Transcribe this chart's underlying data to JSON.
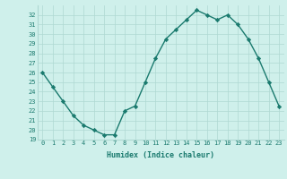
{
  "x": [
    0,
    1,
    2,
    3,
    4,
    5,
    6,
    7,
    8,
    9,
    10,
    11,
    12,
    13,
    14,
    15,
    16,
    17,
    18,
    19,
    20,
    21,
    22,
    23
  ],
  "y": [
    26,
    24.5,
    23,
    21.5,
    20.5,
    20,
    19.5,
    19.5,
    22,
    22.5,
    25,
    27.5,
    29.5,
    30.5,
    31.5,
    32.5,
    32,
    31.5,
    32,
    31,
    29.5,
    27.5,
    25,
    22.5
  ],
  "xlabel": "Humidex (Indice chaleur)",
  "ylim": [
    19,
    33
  ],
  "xlim": [
    -0.5,
    23.5
  ],
  "yticks": [
    19,
    20,
    21,
    22,
    23,
    24,
    25,
    26,
    27,
    28,
    29,
    30,
    31,
    32
  ],
  "xticks": [
    0,
    1,
    2,
    3,
    4,
    5,
    6,
    7,
    8,
    9,
    10,
    11,
    12,
    13,
    14,
    15,
    16,
    17,
    18,
    19,
    20,
    21,
    22,
    23
  ],
  "line_color": "#1a7a6e",
  "bg_color": "#cff0eb",
  "grid_color": "#aed8d2",
  "markersize": 2.2,
  "linewidth": 1.0,
  "tick_fontsize": 5.0,
  "xlabel_fontsize": 6.0
}
